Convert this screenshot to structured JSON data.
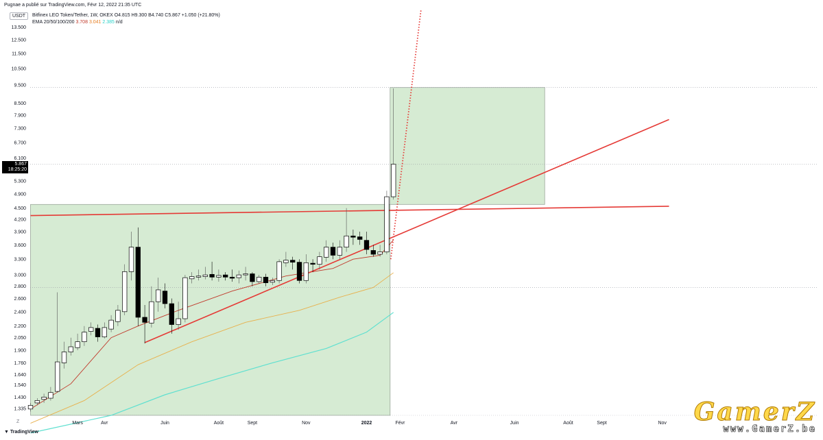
{
  "header": {
    "published": "Pugnae a publié sur TradingView.com, Févr 12, 2022 21:35 UTC",
    "symbol_line": "Bitfinex LEO Token/Tether, 1W, OKEX  O4.815  H9.300  B4.740  C5.867  +1.050 (+21.80%)",
    "ema_label": "EMA 20/50/100/200",
    "ema_values": [
      "3.708",
      "3.041",
      "2.385",
      "n/d"
    ]
  },
  "currency": "USDT",
  "current_price": {
    "value": "5.867",
    "countdown": "18:25:20"
  },
  "footer": {
    "tz_button": "Z",
    "logo": "TradingView"
  },
  "watermark": {
    "brand": "GamerZ",
    "url": "www.GamerZ.be"
  },
  "colors": {
    "bull": "#ffffff",
    "bear": "#000000",
    "zone": "#cfe8cb",
    "zone_border": "#9aa59a",
    "trendline": "#e53935",
    "ema20": "#c0392b",
    "ema50": "#e8b04b",
    "ema100": "#5fe0d0"
  },
  "chart_data": {
    "type": "candlestick",
    "scale": "log",
    "ylim": [
      1.28,
      15.0
    ],
    "y_ticks": [
      "13.500",
      "12.500",
      "11.500",
      "10.500",
      "9.500",
      "8.500",
      "7.900",
      "7.300",
      "6.700",
      "6.100",
      "5.300",
      "4.900",
      "4.500",
      "4.200",
      "3.900",
      "3.600",
      "3.300",
      "3.000",
      "2.800",
      "2.600",
      "2.400",
      "2.200",
      "2.050",
      "1.900",
      "1.760",
      "1.640",
      "1.540",
      "1.430",
      "1.335"
    ],
    "x_labels": [
      "Mars",
      "Avr",
      "Juin",
      "Août",
      "Sept",
      "Nov",
      "2022",
      "Févr",
      "Avr",
      "Juin",
      "Août",
      "Sept",
      "Nov"
    ],
    "candles_note": "weekly OHLC, Feb 2021 – Feb 2022",
    "candles": [
      [
        1.33,
        1.36,
        1.31,
        1.38
      ],
      [
        1.38,
        1.4,
        1.36,
        1.42
      ],
      [
        1.41,
        1.43,
        1.38,
        1.46
      ],
      [
        1.42,
        1.47,
        1.4,
        1.52
      ],
      [
        1.48,
        1.77,
        1.47,
        2.7
      ],
      [
        1.76,
        1.88,
        1.7,
        2.0
      ],
      [
        1.88,
        1.94,
        1.84,
        2.05
      ],
      [
        1.93,
        2.0,
        1.9,
        2.1
      ],
      [
        2.0,
        2.12,
        1.95,
        2.2
      ],
      [
        2.13,
        2.18,
        2.08,
        2.25
      ],
      [
        2.17,
        2.06,
        2.0,
        2.22
      ],
      [
        2.06,
        2.18,
        2.04,
        2.25
      ],
      [
        2.16,
        2.28,
        2.12,
        2.35
      ],
      [
        2.26,
        2.42,
        2.2,
        2.5
      ],
      [
        2.4,
        3.06,
        2.35,
        3.2
      ],
      [
        3.06,
        3.55,
        2.9,
        3.9
      ],
      [
        3.55,
        2.32,
        2.2,
        4.0
      ],
      [
        2.32,
        2.25,
        1.98,
        2.5
      ],
      [
        2.24,
        2.55,
        2.18,
        2.8
      ],
      [
        2.55,
        2.74,
        2.4,
        2.95
      ],
      [
        2.72,
        2.52,
        2.45,
        2.85
      ],
      [
        2.52,
        2.22,
        2.1,
        2.6
      ],
      [
        2.22,
        2.3,
        2.15,
        2.55
      ],
      [
        2.3,
        2.95,
        2.25,
        3.0
      ],
      [
        2.93,
        2.97,
        2.85,
        3.05
      ],
      [
        2.96,
        2.98,
        2.9,
        3.1
      ],
      [
        2.97,
        3.0,
        2.92,
        3.15
      ],
      [
        3.01,
        2.96,
        2.9,
        3.25
      ],
      [
        2.96,
        2.99,
        2.88,
        3.1
      ],
      [
        3.0,
        2.96,
        2.9,
        3.05
      ],
      [
        2.96,
        2.94,
        2.88,
        3.1
      ],
      [
        2.95,
        3.0,
        2.85,
        3.08
      ],
      [
        3.0,
        3.02,
        2.9,
        3.15
      ],
      [
        3.02,
        2.88,
        2.8,
        3.05
      ],
      [
        2.88,
        2.96,
        2.85,
        3.0
      ],
      [
        2.96,
        2.86,
        2.8,
        3.02
      ],
      [
        2.87,
        2.9,
        2.82,
        2.95
      ],
      [
        2.9,
        3.25,
        2.85,
        3.3
      ],
      [
        3.23,
        3.28,
        3.15,
        3.45
      ],
      [
        3.28,
        3.24,
        3.1,
        3.35
      ],
      [
        3.24,
        2.9,
        2.85,
        3.3
      ],
      [
        2.9,
        3.23,
        2.85,
        3.4
      ],
      [
        3.22,
        3.2,
        3.05,
        3.3
      ],
      [
        3.2,
        3.35,
        3.1,
        3.45
      ],
      [
        3.34,
        3.55,
        3.25,
        3.7
      ],
      [
        3.55,
        3.38,
        3.3,
        3.65
      ],
      [
        3.38,
        3.55,
        3.3,
        3.7
      ],
      [
        3.55,
        3.8,
        3.45,
        4.5
      ],
      [
        3.8,
        3.77,
        3.6,
        3.95
      ],
      [
        3.78,
        3.72,
        3.6,
        3.9
      ],
      [
        3.7,
        3.5,
        3.4,
        3.9
      ],
      [
        3.48,
        3.4,
        3.35,
        3.6
      ],
      [
        3.4,
        3.45,
        3.35,
        3.6
      ],
      [
        3.45,
        4.82,
        3.4,
        5.0
      ],
      [
        4.82,
        5.87,
        4.74,
        9.3
      ]
    ],
    "ema20": [
      [
        0,
        1.33
      ],
      [
        6,
        1.55
      ],
      [
        12,
        2.05
      ],
      [
        16,
        2.2
      ],
      [
        22,
        2.42
      ],
      [
        30,
        2.72
      ],
      [
        38,
        2.98
      ],
      [
        45,
        3.12
      ],
      [
        48,
        3.3
      ],
      [
        52,
        3.38
      ],
      [
        54,
        3.71
      ]
    ],
    "ema50": [
      [
        0,
        1.22
      ],
      [
        8,
        1.4
      ],
      [
        16,
        1.74
      ],
      [
        24,
        2.0
      ],
      [
        32,
        2.25
      ],
      [
        40,
        2.42
      ],
      [
        46,
        2.62
      ],
      [
        51,
        2.78
      ],
      [
        54,
        3.04
      ]
    ],
    "ema100": [
      [
        0,
        1.15
      ],
      [
        12,
        1.28
      ],
      [
        20,
        1.45
      ],
      [
        28,
        1.6
      ],
      [
        36,
        1.76
      ],
      [
        44,
        1.92
      ],
      [
        50,
        2.12
      ],
      [
        54,
        2.39
      ]
    ],
    "support_zone": {
      "x0": 0,
      "x1": 53.5,
      "y0": 1.28,
      "y1": 4.6
    },
    "target_zone": {
      "x0": 53.5,
      "x1": 76.5,
      "y0": 4.6,
      "y1": 9.35
    },
    "lines": [
      {
        "kind": "trendline",
        "style": "solid",
        "x0": 0,
        "y0": 4.3,
        "x1": 95,
        "y1": 4.55
      },
      {
        "kind": "trendline",
        "style": "solid",
        "x0": 17,
        "y0": 1.99,
        "x1": 95,
        "y1": 7.7
      },
      {
        "kind": "projection",
        "style": "dotted",
        "x0": 53.6,
        "y0": 3.3,
        "x1": 58.1,
        "y1": 15.0
      }
    ],
    "hlines": [
      9.35,
      5.867,
      2.78
    ]
  }
}
